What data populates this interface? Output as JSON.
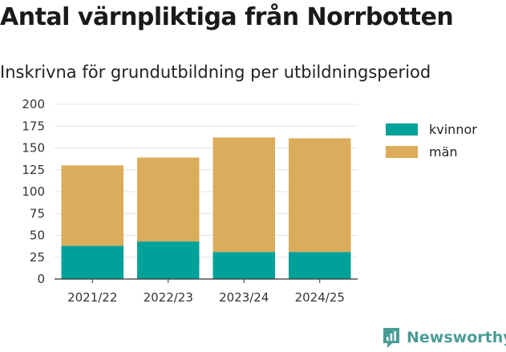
{
  "title": "Antal värnpliktiga från Norrbotten",
  "subtitle": "Inskrivna för grundutbildning per utbildningsperiod",
  "brand": {
    "name": "Newsworthy",
    "icon": "newsworthy-chart-icon",
    "color": "#4a9d96"
  },
  "chart_data": {
    "type": "bar",
    "stacked": true,
    "title": "Antal värnpliktiga från Norrbotten",
    "subtitle": "Inskrivna för grundutbildning per utbildningsperiod",
    "xlabel": "",
    "ylabel": "",
    "categories": [
      "2021/22",
      "2022/23",
      "2023/24",
      "2024/25"
    ],
    "series": [
      {
        "name": "kvinnor",
        "color": "#00a199",
        "values": [
          38,
          43,
          31,
          31
        ]
      },
      {
        "name": "män",
        "color": "#dbac5b",
        "values": [
          92,
          96,
          131,
          130
        ]
      }
    ],
    "ylim": [
      0,
      200
    ],
    "yticks": [
      0,
      25,
      50,
      75,
      100,
      125,
      150,
      175,
      200
    ],
    "grid": true,
    "legend_position": "right"
  }
}
